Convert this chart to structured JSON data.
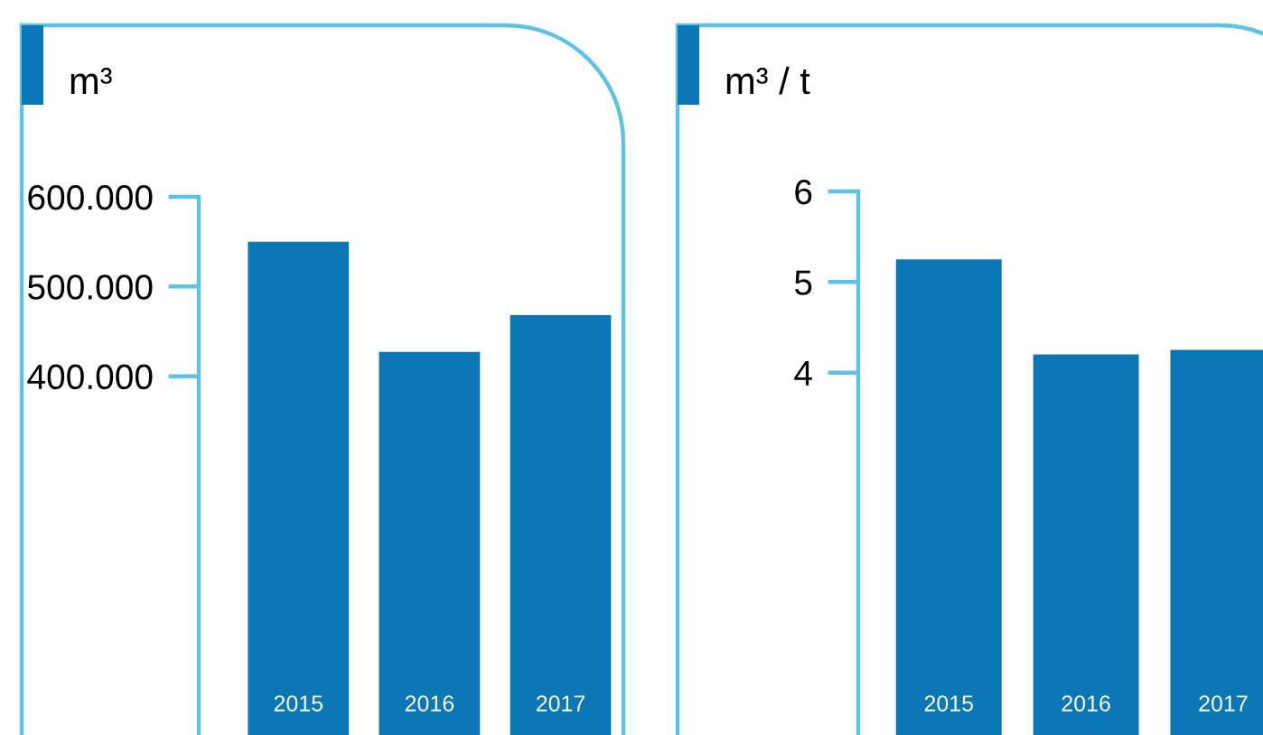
{
  "chart_data": [
    {
      "type": "bar",
      "ylabel": "m³",
      "categories": [
        "2015",
        "2016",
        "2017"
      ],
      "values": [
        550000,
        427000,
        468000
      ],
      "color": "#0b77b5",
      "ylim": [
        0,
        600000
      ],
      "yticks": [
        {
          "value": 400000,
          "label": "400.000"
        },
        {
          "value": 500000,
          "label": "500.000"
        },
        {
          "value": 600000,
          "label": "600.000"
        }
      ],
      "grid": false
    },
    {
      "type": "bar",
      "ylabel": "m³ / t",
      "categories": [
        "2015",
        "2016",
        "2017"
      ],
      "values": [
        5.25,
        4.2,
        4.25
      ],
      "color": "#0b77b5",
      "ylim": [
        0,
        6
      ],
      "yticks": [
        4,
        5,
        6
      ],
      "grid": false
    }
  ]
}
